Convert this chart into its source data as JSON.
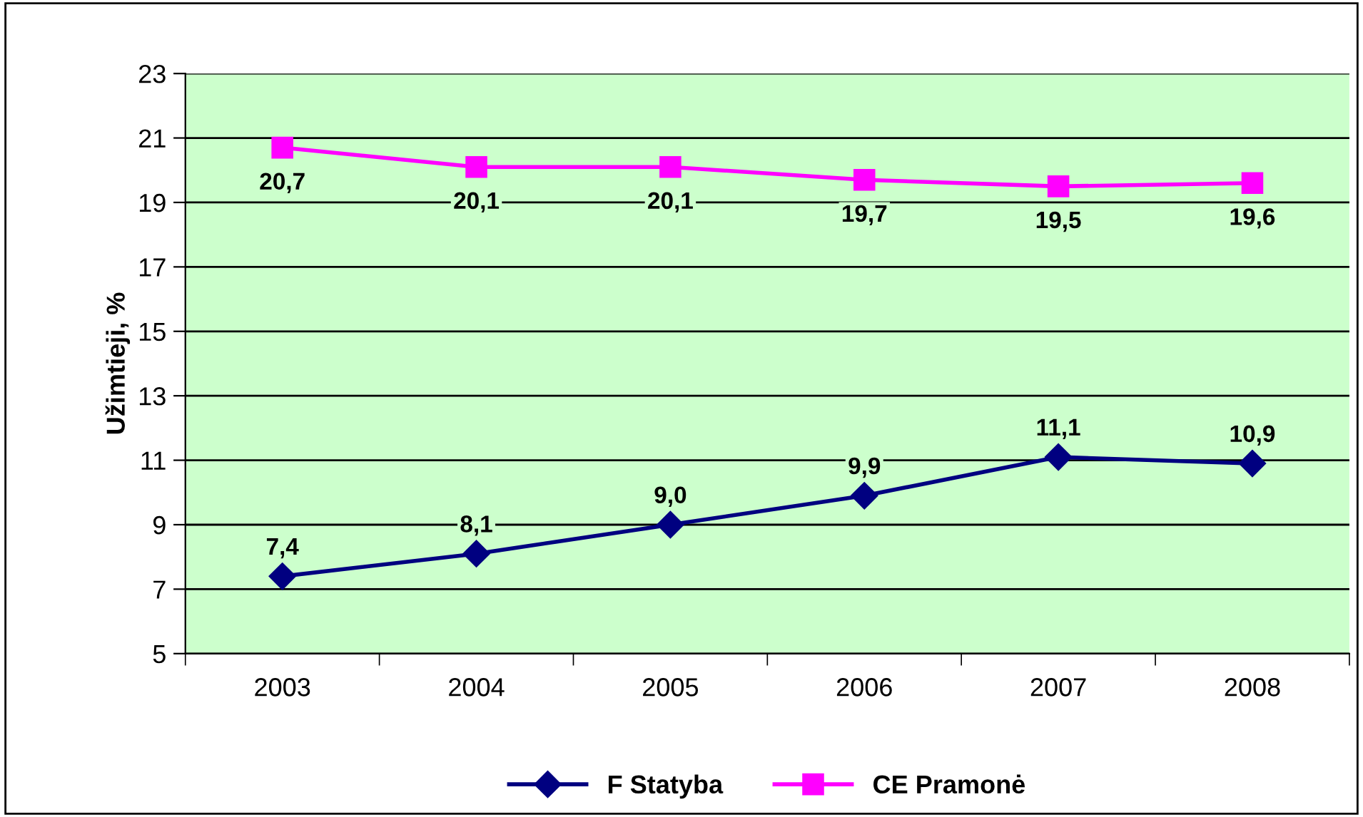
{
  "chart_data": {
    "type": "line",
    "ylabel": "Užimtieji, %",
    "categories": [
      "2003",
      "2004",
      "2005",
      "2006",
      "2007",
      "2008"
    ],
    "series": [
      {
        "name": "F Statyba",
        "color": "#000080",
        "marker": "diamond",
        "values": [
          7.4,
          8.1,
          9.0,
          9.9,
          11.1,
          10.9
        ],
        "value_labels": [
          "7,4",
          "8,1",
          "9,0",
          "9,9",
          "11,1",
          "10,9"
        ]
      },
      {
        "name": "CE Pramonė",
        "color": "#ff00ff",
        "marker": "square",
        "values": [
          20.7,
          20.1,
          20.1,
          19.7,
          19.5,
          19.6
        ],
        "value_labels": [
          "20,7",
          "20,1",
          "20,1",
          "19,7",
          "19,5",
          "19,6"
        ]
      }
    ],
    "ylim": [
      5,
      23
    ],
    "yticks": [
      5,
      7,
      9,
      11,
      13,
      15,
      17,
      19,
      21,
      23
    ],
    "grid": "y",
    "legend": "bottom"
  }
}
